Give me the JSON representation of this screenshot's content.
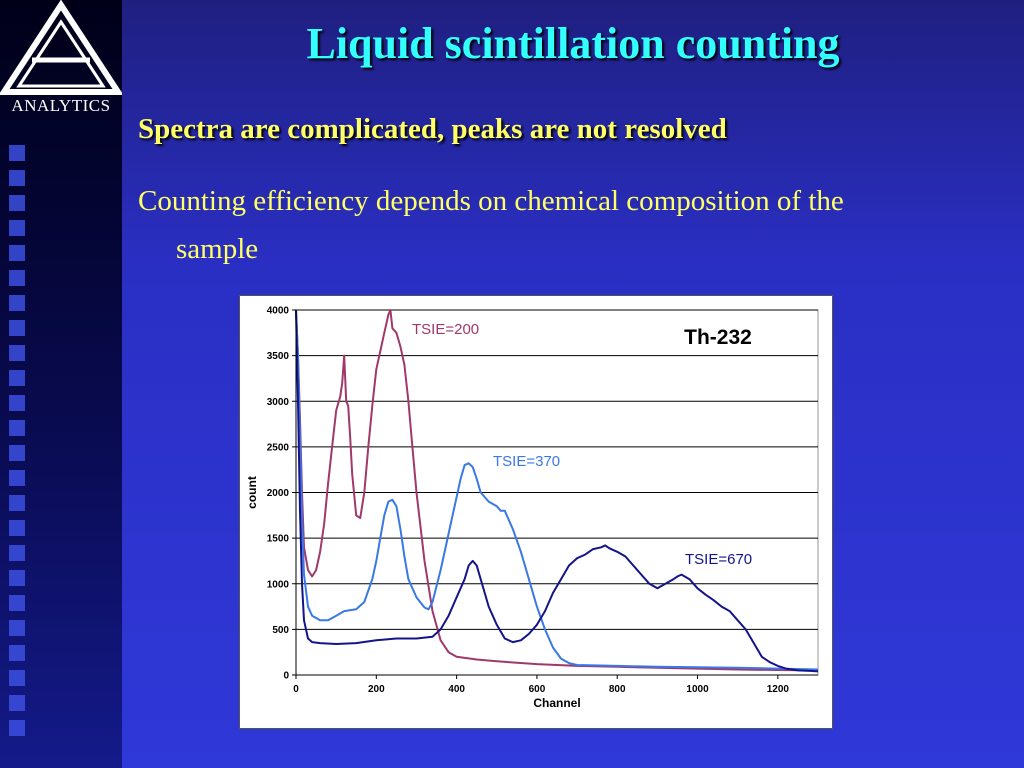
{
  "slide": {
    "title": "Liquid scintillation counting",
    "bullet1": "Spectra are complicated, peaks are not resolved",
    "bullet2_line1": "Counting efficiency depends on chemical composition of the",
    "bullet2_line2": "sample",
    "logo_text": "ANALYTICS"
  },
  "colors": {
    "title": "#33ffff",
    "text": "#ffff66",
    "series_200": "#a0386a",
    "series_370": "#3a78e8",
    "series_670": "#14148a"
  },
  "chart_data": {
    "type": "line",
    "title": "Th-232",
    "xlabel": "Channel",
    "ylabel": "count",
    "xlim": [
      0,
      1300
    ],
    "ylim": [
      0,
      4000
    ],
    "xticks": [
      0,
      200,
      400,
      600,
      800,
      1000,
      1200
    ],
    "yticks": [
      0,
      500,
      1000,
      1500,
      2000,
      2500,
      3000,
      3500,
      4000
    ],
    "grid": "horizontal",
    "series": [
      {
        "name": "TSIE=200",
        "x": [
          0,
          5,
          10,
          15,
          20,
          30,
          40,
          50,
          60,
          70,
          80,
          90,
          100,
          110,
          115,
          120,
          125,
          130,
          135,
          140,
          150,
          160,
          170,
          180,
          190,
          200,
          210,
          220,
          230,
          235,
          240,
          250,
          260,
          270,
          280,
          290,
          300,
          320,
          340,
          360,
          380,
          400,
          450,
          500,
          600,
          700,
          800,
          900,
          1000,
          1100,
          1200,
          1300
        ],
        "y": [
          4000,
          3500,
          2800,
          2000,
          1400,
          1150,
          1080,
          1150,
          1350,
          1650,
          2100,
          2500,
          2900,
          3050,
          3200,
          3500,
          3000,
          2950,
          2600,
          2200,
          1750,
          1720,
          2000,
          2500,
          2950,
          3350,
          3550,
          3750,
          3950,
          4000,
          3800,
          3750,
          3600,
          3400,
          3000,
          2500,
          2000,
          1250,
          700,
          380,
          250,
          200,
          170,
          150,
          120,
          100,
          90,
          80,
          70,
          60,
          55,
          50
        ]
      },
      {
        "name": "TSIE=370",
        "x": [
          0,
          5,
          10,
          15,
          20,
          30,
          40,
          60,
          80,
          100,
          120,
          150,
          170,
          190,
          200,
          210,
          220,
          230,
          240,
          250,
          260,
          270,
          280,
          300,
          320,
          330,
          340,
          360,
          380,
          400,
          410,
          420,
          430,
          440,
          450,
          460,
          480,
          500,
          510,
          520,
          540,
          560,
          580,
          600,
          620,
          640,
          660,
          680,
          700,
          800,
          900,
          1000,
          1100,
          1200,
          1300
        ],
        "y": [
          4000,
          3500,
          2600,
          1700,
          1100,
          750,
          650,
          600,
          600,
          650,
          700,
          720,
          800,
          1050,
          1250,
          1500,
          1750,
          1900,
          1920,
          1850,
          1600,
          1300,
          1050,
          850,
          740,
          720,
          800,
          1150,
          1550,
          1950,
          2150,
          2300,
          2320,
          2280,
          2150,
          2000,
          1900,
          1850,
          1800,
          1800,
          1600,
          1350,
          1050,
          750,
          500,
          300,
          180,
          130,
          110,
          100,
          90,
          85,
          80,
          70,
          60
        ]
      },
      {
        "name": "TSIE=670",
        "x": [
          0,
          5,
          10,
          15,
          20,
          30,
          40,
          60,
          100,
          150,
          200,
          250,
          300,
          340,
          360,
          380,
          400,
          420,
          430,
          440,
          450,
          460,
          480,
          500,
          520,
          540,
          560,
          580,
          600,
          620,
          640,
          660,
          680,
          700,
          720,
          740,
          760,
          770,
          780,
          800,
          820,
          840,
          860,
          880,
          900,
          920,
          940,
          950,
          960,
          980,
          1000,
          1020,
          1040,
          1060,
          1080,
          1100,
          1120,
          1140,
          1160,
          1180,
          1200,
          1220,
          1250,
          1280,
          1300
        ],
        "y": [
          4000,
          3000,
          1800,
          1000,
          600,
          400,
          360,
          350,
          340,
          350,
          380,
          400,
          400,
          420,
          500,
          650,
          850,
          1050,
          1200,
          1250,
          1200,
          1050,
          750,
          550,
          400,
          360,
          380,
          450,
          550,
          700,
          900,
          1050,
          1200,
          1280,
          1320,
          1380,
          1400,
          1420,
          1390,
          1350,
          1300,
          1200,
          1100,
          1000,
          950,
          1000,
          1050,
          1080,
          1100,
          1050,
          950,
          880,
          820,
          750,
          700,
          600,
          500,
          350,
          200,
          140,
          100,
          70,
          50,
          45,
          40
        ]
      }
    ],
    "annotations": [
      {
        "text": "TSIE=200",
        "series": 0
      },
      {
        "text": "TSIE=370",
        "series": 1
      },
      {
        "text": "TSIE=670",
        "series": 2
      }
    ]
  }
}
